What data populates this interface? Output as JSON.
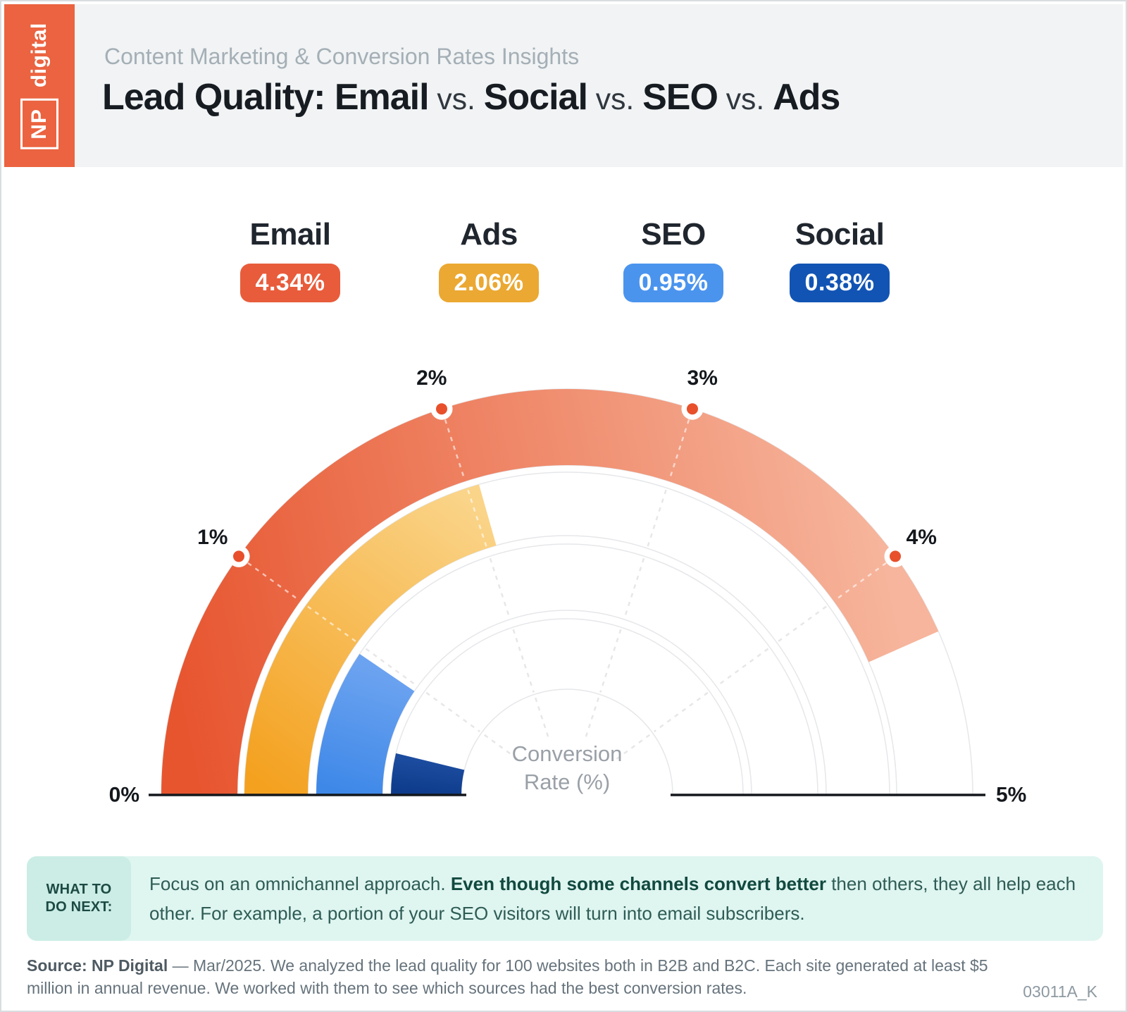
{
  "logo": {
    "np": "NP",
    "wordmark": "digital",
    "bg": "#EB6340"
  },
  "header": {
    "subtitle": "Content Marketing & Conversion Rates Insights",
    "title_segments": [
      {
        "text": "Lead Quality: Email",
        "bold": true
      },
      {
        "text": " vs. ",
        "bold": false
      },
      {
        "text": "Social",
        "bold": true
      },
      {
        "text": " vs. ",
        "bold": false
      },
      {
        "text": "SEO",
        "bold": true
      },
      {
        "text": " vs. ",
        "bold": false
      },
      {
        "text": "Ads",
        "bold": true
      }
    ]
  },
  "legend": {
    "items": [
      {
        "label": "Email",
        "value": "4.34%",
        "color": "#E85C3B"
      },
      {
        "label": "Ads",
        "value": "2.06%",
        "color": "#EBA832"
      },
      {
        "label": "SEO",
        "value": "0.95%",
        "color": "#4A94EE"
      },
      {
        "label": "Social",
        "value": "0.38%",
        "color": "#1254B4"
      }
    ]
  },
  "chart_data": {
    "type": "bar",
    "variant": "radial-semicircle-gauge",
    "title": "Lead Quality: Email vs. Social vs. SEO vs. Ads",
    "categories": [
      "Email",
      "Ads",
      "SEO",
      "Social"
    ],
    "values": [
      4.34,
      2.06,
      0.95,
      0.38
    ],
    "unit": "%",
    "axis_label": "Conversion Rate (%)",
    "axis_min": 0,
    "axis_max": 5,
    "tick_labels": [
      "0%",
      "1%",
      "2%",
      "3%",
      "4%",
      "5%"
    ],
    "center_label_lines": [
      "Conversion",
      "Rate (%)"
    ],
    "legend_position": "top",
    "ring_gradients": [
      [
        "#E7552F",
        "#F6B59C"
      ],
      [
        "#F4A11F",
        "#FAD489"
      ],
      [
        "#3E88E8",
        "#6CA3F0"
      ],
      [
        "#0E3B8B",
        "#1C4C9F"
      ]
    ],
    "tick_dot_color": "#E8502B",
    "track_stroke": "#E6E7EA",
    "baseline_color": "#14181D"
  },
  "insight": {
    "kicker_line1": "WHAT TO",
    "kicker_line2": "DO NEXT:",
    "text_pre": "Focus on an omnichannel approach. ",
    "text_bold": "Even though some channels convert better",
    "text_post": " then others, they all help each other. For example, a portion of your SEO visitors will turn into email subscribers."
  },
  "footer": {
    "source_bold": "Source: NP Digital",
    "source_rest": " — Mar/2025. We analyzed the lead quality for 100 websites both in B2B and B2C. Each site generated at least $5 million in annual revenue. We worked with them to see which sources had the best conversion rates.",
    "code": "03011A_K"
  }
}
